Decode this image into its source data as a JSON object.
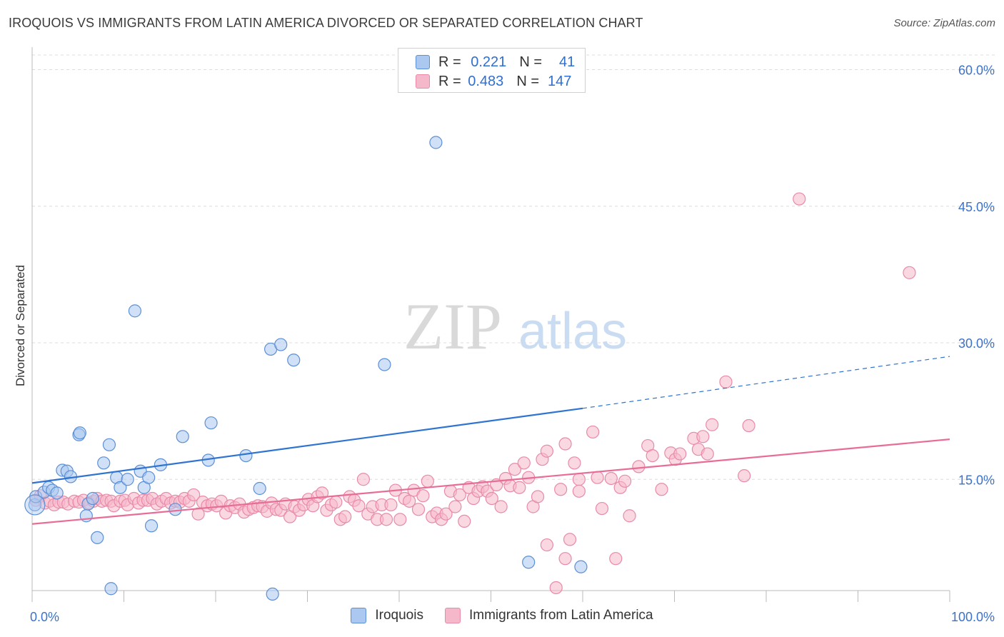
{
  "title": "IROQUOIS VS IMMIGRANTS FROM LATIN AMERICA DIVORCED OR SEPARATED CORRELATION CHART",
  "source": "Source: ZipAtlas.com",
  "watermark": {
    "zip": "ZIP",
    "atlas": "atlas"
  },
  "legend": {
    "rows": [
      {
        "r_label": "R =",
        "r_value": "0.221",
        "n_label": "N =",
        "n_value": "41"
      },
      {
        "r_label": "R =",
        "r_value": "0.483",
        "n_label": "N =",
        "n_value": "147"
      }
    ]
  },
  "bottom_legend": {
    "items": [
      {
        "label": "Iroquois"
      },
      {
        "label": "Immigrants from Latin America"
      }
    ]
  },
  "colors": {
    "blue_fill": "#aac8f0",
    "blue_stroke": "#5c8fd6",
    "blue_line": "#2f74d0",
    "pink_fill": "#f5b8cb",
    "pink_stroke": "#e98aa8",
    "pink_line": "#e86d96",
    "tick_label": "#3d72c9",
    "grid": "#dddddd"
  },
  "chart_data": {
    "type": "scatter",
    "title": "IROQUOIS VS IMMIGRANTS FROM LATIN AMERICA DIVORCED OR SEPARATED CORRELATION CHART",
    "xlabel": "",
    "ylabel": "Divorced or Separated",
    "xlim": [
      0,
      100
    ],
    "ylim": [
      0,
      62
    ],
    "x_tick_labels": [
      "0.0%",
      "100.0%"
    ],
    "y_ticks": [
      15,
      30,
      45,
      60
    ],
    "y_tick_labels": [
      "15.0%",
      "30.0%",
      "45.0%",
      "60.0%"
    ],
    "grid": true,
    "legend_position": "top-center",
    "series": [
      {
        "name": "Iroquois",
        "color": "#aac8f0",
        "points": [
          [
            0.3,
            12.2
          ],
          [
            0.4,
            13.1
          ],
          [
            1.3,
            13.6
          ],
          [
            1.8,
            14.1
          ],
          [
            2.2,
            13.8
          ],
          [
            2.7,
            13.5
          ],
          [
            3.3,
            16.0
          ],
          [
            3.8,
            15.9
          ],
          [
            4.2,
            15.3
          ],
          [
            5.1,
            19.9
          ],
          [
            5.2,
            20.1
          ],
          [
            5.9,
            11.0
          ],
          [
            6.1,
            12.3
          ],
          [
            6.6,
            12.9
          ],
          [
            7.1,
            8.6
          ],
          [
            7.8,
            16.8
          ],
          [
            8.4,
            18.8
          ],
          [
            8.6,
            3.0
          ],
          [
            9.2,
            15.2
          ],
          [
            9.6,
            14.1
          ],
          [
            10.4,
            15.0
          ],
          [
            11.2,
            33.5
          ],
          [
            11.8,
            15.9
          ],
          [
            12.2,
            14.1
          ],
          [
            12.7,
            15.2
          ],
          [
            13.0,
            9.9
          ],
          [
            14.0,
            16.6
          ],
          [
            15.6,
            11.7
          ],
          [
            16.4,
            19.7
          ],
          [
            19.2,
            17.1
          ],
          [
            19.5,
            21.2
          ],
          [
            23.3,
            17.6
          ],
          [
            24.8,
            14.0
          ],
          [
            26.0,
            29.3
          ],
          [
            26.2,
            2.4
          ],
          [
            27.1,
            29.8
          ],
          [
            28.5,
            28.1
          ],
          [
            38.4,
            27.6
          ],
          [
            44.0,
            52.0
          ],
          [
            54.1,
            5.9
          ],
          [
            59.8,
            5.4
          ]
        ]
      },
      {
        "name": "Immigrants from Latin America",
        "color": "#f5b8cb",
        "points": [
          [
            0.4,
            12.7
          ],
          [
            0.9,
            13.2
          ],
          [
            1.4,
            12.4
          ],
          [
            1.9,
            12.6
          ],
          [
            2.4,
            12.2
          ],
          [
            2.9,
            12.5
          ],
          [
            3.4,
            12.5
          ],
          [
            3.9,
            12.3
          ],
          [
            4.6,
            12.6
          ],
          [
            5.1,
            12.5
          ],
          [
            5.6,
            12.7
          ],
          [
            6.2,
            12.4
          ],
          [
            6.7,
            12.6
          ],
          [
            7.1,
            12.9
          ],
          [
            7.6,
            12.6
          ],
          [
            8.1,
            12.7
          ],
          [
            8.6,
            12.6
          ],
          [
            8.9,
            12.1
          ],
          [
            9.6,
            12.6
          ],
          [
            10.1,
            12.7
          ],
          [
            10.4,
            12.2
          ],
          [
            11.1,
            12.9
          ],
          [
            11.6,
            12.4
          ],
          [
            12.1,
            12.7
          ],
          [
            12.6,
            12.7
          ],
          [
            13.1,
            12.9
          ],
          [
            13.6,
            12.3
          ],
          [
            14.1,
            12.6
          ],
          [
            14.6,
            12.9
          ],
          [
            15.1,
            12.4
          ],
          [
            15.6,
            12.6
          ],
          [
            16.1,
            12.5
          ],
          [
            16.6,
            12.9
          ],
          [
            17.1,
            12.6
          ],
          [
            17.6,
            13.3
          ],
          [
            18.1,
            11.2
          ],
          [
            18.6,
            12.5
          ],
          [
            19.1,
            12.1
          ],
          [
            19.6,
            12.3
          ],
          [
            20.1,
            12.1
          ],
          [
            20.6,
            12.6
          ],
          [
            21.1,
            11.3
          ],
          [
            21.6,
            12.1
          ],
          [
            22.1,
            11.9
          ],
          [
            22.6,
            12.3
          ],
          [
            23.1,
            11.4
          ],
          [
            23.6,
            11.7
          ],
          [
            24.1,
            11.9
          ],
          [
            24.6,
            12.1
          ],
          [
            25.1,
            12.0
          ],
          [
            25.6,
            11.5
          ],
          [
            26.1,
            12.4
          ],
          [
            26.6,
            11.7
          ],
          [
            27.1,
            11.6
          ],
          [
            27.6,
            12.3
          ],
          [
            28.1,
            10.9
          ],
          [
            28.6,
            12.0
          ],
          [
            29.1,
            11.6
          ],
          [
            29.6,
            12.2
          ],
          [
            30.1,
            12.8
          ],
          [
            30.6,
            12.1
          ],
          [
            31.1,
            13.1
          ],
          [
            31.6,
            13.5
          ],
          [
            32.1,
            11.6
          ],
          [
            32.6,
            12.2
          ],
          [
            33.1,
            12.5
          ],
          [
            33.6,
            10.6
          ],
          [
            34.1,
            10.9
          ],
          [
            34.6,
            13.1
          ],
          [
            35.1,
            12.7
          ],
          [
            35.6,
            12.1
          ],
          [
            36.1,
            15.0
          ],
          [
            36.6,
            11.2
          ],
          [
            37.1,
            12.0
          ],
          [
            37.6,
            10.6
          ],
          [
            38.1,
            12.2
          ],
          [
            38.6,
            10.6
          ],
          [
            39.1,
            12.2
          ],
          [
            39.6,
            13.8
          ],
          [
            40.1,
            10.6
          ],
          [
            40.6,
            12.9
          ],
          [
            41.1,
            12.6
          ],
          [
            41.6,
            13.8
          ],
          [
            42.1,
            11.7
          ],
          [
            42.6,
            13.2
          ],
          [
            43.1,
            14.8
          ],
          [
            43.6,
            10.9
          ],
          [
            44.1,
            11.3
          ],
          [
            44.6,
            10.6
          ],
          [
            45.1,
            11.2
          ],
          [
            45.6,
            13.7
          ],
          [
            46.1,
            12.0
          ],
          [
            46.6,
            13.3
          ],
          [
            47.1,
            10.4
          ],
          [
            47.6,
            14.1
          ],
          [
            48.1,
            12.9
          ],
          [
            48.6,
            13.7
          ],
          [
            49.1,
            14.2
          ],
          [
            49.6,
            13.7
          ],
          [
            50.1,
            12.9
          ],
          [
            50.6,
            14.4
          ],
          [
            51.1,
            12.0
          ],
          [
            51.6,
            15.1
          ],
          [
            52.1,
            14.3
          ],
          [
            52.6,
            16.1
          ],
          [
            53.1,
            14.1
          ],
          [
            53.6,
            16.8
          ],
          [
            54.1,
            15.2
          ],
          [
            54.6,
            12.0
          ],
          [
            55.1,
            13.1
          ],
          [
            55.6,
            17.2
          ],
          [
            56.1,
            18.1
          ],
          [
            57.6,
            13.9
          ],
          [
            58.1,
            18.9
          ],
          [
            59.1,
            16.8
          ],
          [
            59.6,
            15.0
          ],
          [
            59.6,
            13.7
          ],
          [
            61.1,
            20.2
          ],
          [
            61.6,
            15.2
          ],
          [
            62.1,
            11.8
          ],
          [
            63.1,
            15.1
          ],
          [
            64.1,
            14.1
          ],
          [
            64.6,
            14.8
          ],
          [
            65.1,
            11.0
          ],
          [
            66.1,
            16.4
          ],
          [
            67.1,
            18.7
          ],
          [
            67.6,
            17.6
          ],
          [
            68.6,
            13.9
          ],
          [
            69.6,
            17.9
          ],
          [
            70.1,
            17.2
          ],
          [
            70.6,
            17.8
          ],
          [
            72.1,
            19.5
          ],
          [
            72.6,
            18.3
          ],
          [
            73.1,
            19.7
          ],
          [
            73.6,
            17.8
          ],
          [
            74.1,
            21.0
          ],
          [
            75.6,
            25.7
          ],
          [
            77.6,
            15.4
          ],
          [
            78.1,
            20.9
          ],
          [
            56.1,
            7.8
          ],
          [
            58.1,
            6.3
          ],
          [
            58.6,
            8.4
          ],
          [
            63.6,
            6.3
          ],
          [
            57.1,
            3.1
          ],
          [
            83.6,
            45.8
          ],
          [
            95.6,
            37.7
          ]
        ]
      }
    ],
    "trend_lines": [
      {
        "series": "Iroquois",
        "x": [
          0,
          60
        ],
        "y": [
          14.6,
          22.8
        ],
        "dashed_extension_to": [
          100,
          28.5
        ]
      },
      {
        "series": "Immigrants from Latin America",
        "x": [
          0,
          100
        ],
        "y": [
          10.1,
          19.4
        ]
      }
    ]
  }
}
